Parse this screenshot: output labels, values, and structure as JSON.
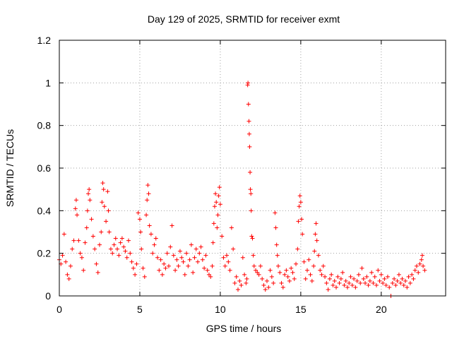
{
  "chart_data": {
    "type": "scatter",
    "title": "Day 129 of 2025, SRMTID for receiver exmt",
    "xlabel": "GPS time / hours",
    "ylabel": "SRMTID / TECUs",
    "xlim": [
      0,
      24
    ],
    "ylim": [
      0,
      1.2
    ],
    "x_ticks": [
      0,
      5,
      10,
      15,
      20
    ],
    "x_tick_labels": [
      "0",
      "5",
      "10",
      "15",
      "20"
    ],
    "y_ticks": [
      0,
      0.2,
      0.4,
      0.6,
      0.8,
      1,
      1.2
    ],
    "y_tick_labels": [
      "0",
      "0.2",
      "0.4",
      "0.6",
      "0.8",
      "1",
      "1.2"
    ],
    "grid": true,
    "marker": "plus",
    "marker_color": "#ff0000",
    "series": [
      {
        "name": "SRMTID",
        "points": [
          [
            0.0,
            0.17
          ],
          [
            0.1,
            0.15
          ],
          [
            0.2,
            0.19
          ],
          [
            0.3,
            0.29
          ],
          [
            0.4,
            0.16
          ],
          [
            0.5,
            0.1
          ],
          [
            0.6,
            0.08
          ],
          [
            0.7,
            0.14
          ],
          [
            0.8,
            0.22
          ],
          [
            0.9,
            0.26
          ],
          [
            1.0,
            0.41
          ],
          [
            1.05,
            0.45
          ],
          [
            1.1,
            0.38
          ],
          [
            1.2,
            0.26
          ],
          [
            1.3,
            0.2
          ],
          [
            1.4,
            0.18
          ],
          [
            1.5,
            0.12
          ],
          [
            1.6,
            0.25
          ],
          [
            1.7,
            0.32
          ],
          [
            1.75,
            0.4
          ],
          [
            1.8,
            0.48
          ],
          [
            1.85,
            0.5
          ],
          [
            1.9,
            0.45
          ],
          [
            2.0,
            0.36
          ],
          [
            2.1,
            0.28
          ],
          [
            2.2,
            0.22
          ],
          [
            2.3,
            0.15
          ],
          [
            2.4,
            0.11
          ],
          [
            2.5,
            0.24
          ],
          [
            2.6,
            0.3
          ],
          [
            2.65,
            0.44
          ],
          [
            2.7,
            0.53
          ],
          [
            2.75,
            0.5
          ],
          [
            2.8,
            0.42
          ],
          [
            2.9,
            0.35
          ],
          [
            3.0,
            0.49
          ],
          [
            3.05,
            0.4
          ],
          [
            3.1,
            0.3
          ],
          [
            3.2,
            0.22
          ],
          [
            3.3,
            0.2
          ],
          [
            3.4,
            0.24
          ],
          [
            3.5,
            0.27
          ],
          [
            3.6,
            0.22
          ],
          [
            3.7,
            0.19
          ],
          [
            3.8,
            0.25
          ],
          [
            3.9,
            0.27
          ],
          [
            4.0,
            0.23
          ],
          [
            4.1,
            0.21
          ],
          [
            4.2,
            0.18
          ],
          [
            4.3,
            0.26
          ],
          [
            4.4,
            0.2
          ],
          [
            4.5,
            0.16
          ],
          [
            4.6,
            0.13
          ],
          [
            4.7,
            0.1
          ],
          [
            4.8,
            0.15
          ],
          [
            4.9,
            0.39
          ],
          [
            5.0,
            0.36
          ],
          [
            5.05,
            0.3
          ],
          [
            5.1,
            0.22
          ],
          [
            5.2,
            0.13
          ],
          [
            5.3,
            0.09
          ],
          [
            5.4,
            0.38
          ],
          [
            5.45,
            0.45
          ],
          [
            5.5,
            0.52
          ],
          [
            5.55,
            0.48
          ],
          [
            5.6,
            0.33
          ],
          [
            5.7,
            0.29
          ],
          [
            5.8,
            0.2
          ],
          [
            5.9,
            0.24
          ],
          [
            6.0,
            0.27
          ],
          [
            6.1,
            0.18
          ],
          [
            6.2,
            0.12
          ],
          [
            6.3,
            0.17
          ],
          [
            6.4,
            0.1
          ],
          [
            6.5,
            0.15
          ],
          [
            6.6,
            0.13
          ],
          [
            6.7,
            0.2
          ],
          [
            6.8,
            0.14
          ],
          [
            6.9,
            0.23
          ],
          [
            7.0,
            0.33
          ],
          [
            7.1,
            0.19
          ],
          [
            7.2,
            0.12
          ],
          [
            7.3,
            0.17
          ],
          [
            7.4,
            0.14
          ],
          [
            7.5,
            0.21
          ],
          [
            7.6,
            0.18
          ],
          [
            7.7,
            0.16
          ],
          [
            7.8,
            0.1
          ],
          [
            7.9,
            0.2
          ],
          [
            8.0,
            0.14
          ],
          [
            8.1,
            0.17
          ],
          [
            8.2,
            0.24
          ],
          [
            8.3,
            0.11
          ],
          [
            8.4,
            0.18
          ],
          [
            8.5,
            0.22
          ],
          [
            8.6,
            0.16
          ],
          [
            8.7,
            0.2
          ],
          [
            8.8,
            0.23
          ],
          [
            8.9,
            0.17
          ],
          [
            9.0,
            0.13
          ],
          [
            9.1,
            0.19
          ],
          [
            9.2,
            0.12
          ],
          [
            9.3,
            0.1
          ],
          [
            9.4,
            0.09
          ],
          [
            9.5,
            0.14
          ],
          [
            9.55,
            0.25
          ],
          [
            9.6,
            0.34
          ],
          [
            9.65,
            0.42
          ],
          [
            9.7,
            0.48
          ],
          [
            9.75,
            0.44
          ],
          [
            9.8,
            0.32
          ],
          [
            9.85,
            0.38
          ],
          [
            9.9,
            0.47
          ],
          [
            9.95,
            0.51
          ],
          [
            10.0,
            0.43
          ],
          [
            10.1,
            0.28
          ],
          [
            10.2,
            0.18
          ],
          [
            10.3,
            0.14
          ],
          [
            10.4,
            0.19
          ],
          [
            10.5,
            0.16
          ],
          [
            10.6,
            0.12
          ],
          [
            10.7,
            0.32
          ],
          [
            10.8,
            0.22
          ],
          [
            10.9,
            0.06
          ],
          [
            11.0,
            0.09
          ],
          [
            11.1,
            0.03
          ],
          [
            11.2,
            0.07
          ],
          [
            11.3,
            0.05
          ],
          [
            11.4,
            0.18
          ],
          [
            11.5,
            0.1
          ],
          [
            11.6,
            0.06
          ],
          [
            11.65,
            0.08
          ],
          [
            11.7,
            0.99
          ],
          [
            11.72,
            1.0
          ],
          [
            11.75,
            0.9
          ],
          [
            11.78,
            0.82
          ],
          [
            11.8,
            0.76
          ],
          [
            11.82,
            0.7
          ],
          [
            11.85,
            0.58
          ],
          [
            11.87,
            0.5
          ],
          [
            11.9,
            0.48
          ],
          [
            11.92,
            0.4
          ],
          [
            11.95,
            0.28
          ],
          [
            12.0,
            0.27
          ],
          [
            12.05,
            0.19
          ],
          [
            12.1,
            0.14
          ],
          [
            12.2,
            0.12
          ],
          [
            12.3,
            0.11
          ],
          [
            12.4,
            0.1
          ],
          [
            12.5,
            0.14
          ],
          [
            12.6,
            0.08
          ],
          [
            12.7,
            0.05
          ],
          [
            12.8,
            0.03
          ],
          [
            12.9,
            0.07
          ],
          [
            13.0,
            0.04
          ],
          [
            13.1,
            0.12
          ],
          [
            13.2,
            0.09
          ],
          [
            13.3,
            0.06
          ],
          [
            13.4,
            0.39
          ],
          [
            13.45,
            0.32
          ],
          [
            13.5,
            0.24
          ],
          [
            13.55,
            0.19
          ],
          [
            13.6,
            0.14
          ],
          [
            13.7,
            0.11
          ],
          [
            13.8,
            0.06
          ],
          [
            13.9,
            0.04
          ],
          [
            14.0,
            0.1
          ],
          [
            14.1,
            0.12
          ],
          [
            14.2,
            0.09
          ],
          [
            14.3,
            0.07
          ],
          [
            14.4,
            0.13
          ],
          [
            14.5,
            0.11
          ],
          [
            14.6,
            0.08
          ],
          [
            14.7,
            0.15
          ],
          [
            14.8,
            0.22
          ],
          [
            14.85,
            0.35
          ],
          [
            14.9,
            0.42
          ],
          [
            14.95,
            0.47
          ],
          [
            15.0,
            0.44
          ],
          [
            15.05,
            0.36
          ],
          [
            15.1,
            0.29
          ],
          [
            15.2,
            0.16
          ],
          [
            15.3,
            0.08
          ],
          [
            15.4,
            0.12
          ],
          [
            15.5,
            0.17
          ],
          [
            15.6,
            0.1
          ],
          [
            15.7,
            0.07
          ],
          [
            15.8,
            0.14
          ],
          [
            15.85,
            0.21
          ],
          [
            15.9,
            0.29
          ],
          [
            15.95,
            0.34
          ],
          [
            16.0,
            0.26
          ],
          [
            16.1,
            0.19
          ],
          [
            16.2,
            0.12
          ],
          [
            16.3,
            0.1
          ],
          [
            16.4,
            0.14
          ],
          [
            16.5,
            0.09
          ],
          [
            16.6,
            0.06
          ],
          [
            16.7,
            0.03
          ],
          [
            16.8,
            0.08
          ],
          [
            16.9,
            0.1
          ],
          [
            17.0,
            0.05
          ],
          [
            17.1,
            0.07
          ],
          [
            17.2,
            0.04
          ],
          [
            17.3,
            0.09
          ],
          [
            17.4,
            0.06
          ],
          [
            17.5,
            0.08
          ],
          [
            17.6,
            0.11
          ],
          [
            17.7,
            0.05
          ],
          [
            17.8,
            0.07
          ],
          [
            17.9,
            0.04
          ],
          [
            18.0,
            0.06
          ],
          [
            18.1,
            0.09
          ],
          [
            18.2,
            0.05
          ],
          [
            18.3,
            0.08
          ],
          [
            18.4,
            0.04
          ],
          [
            18.5,
            0.07
          ],
          [
            18.6,
            0.1
          ],
          [
            18.7,
            0.06
          ],
          [
            18.8,
            0.13
          ],
          [
            18.9,
            0.08
          ],
          [
            19.0,
            0.06
          ],
          [
            19.1,
            0.09
          ],
          [
            19.2,
            0.05
          ],
          [
            19.3,
            0.07
          ],
          [
            19.4,
            0.11
          ],
          [
            19.5,
            0.06
          ],
          [
            19.6,
            0.09
          ],
          [
            19.7,
            0.05
          ],
          [
            19.8,
            0.12
          ],
          [
            19.9,
            0.07
          ],
          [
            20.0,
            0.1
          ],
          [
            20.1,
            0.06
          ],
          [
            20.2,
            0.08
          ],
          [
            20.3,
            0.05
          ],
          [
            20.4,
            0.09
          ],
          [
            20.5,
            0.04
          ],
          [
            20.6,
            0.0
          ],
          [
            20.7,
            0.06
          ],
          [
            20.8,
            0.08
          ],
          [
            20.9,
            0.05
          ],
          [
            21.0,
            0.07
          ],
          [
            21.1,
            0.1
          ],
          [
            21.2,
            0.06
          ],
          [
            21.3,
            0.08
          ],
          [
            21.4,
            0.05
          ],
          [
            21.5,
            0.07
          ],
          [
            21.6,
            0.04
          ],
          [
            21.7,
            0.09
          ],
          [
            21.8,
            0.06
          ],
          [
            21.9,
            0.1
          ],
          [
            22.0,
            0.08
          ],
          [
            22.1,
            0.12
          ],
          [
            22.2,
            0.14
          ],
          [
            22.3,
            0.11
          ],
          [
            22.4,
            0.15
          ],
          [
            22.5,
            0.17
          ],
          [
            22.55,
            0.19
          ],
          [
            22.6,
            0.14
          ],
          [
            22.7,
            0.12
          ]
        ]
      }
    ]
  }
}
